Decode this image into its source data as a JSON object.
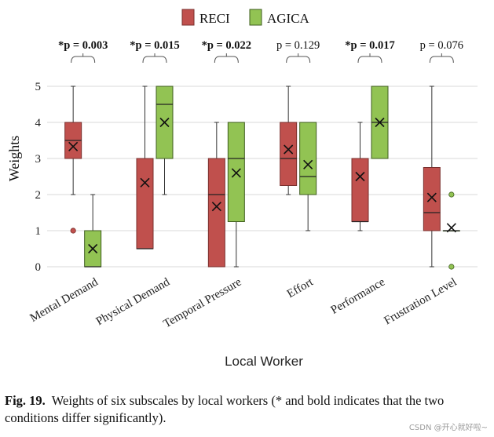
{
  "chart_data": {
    "type": "box",
    "xlabel": "Local Worker",
    "ylabel": "Weights",
    "ylim": [
      0,
      5
    ],
    "yticks": [
      "0",
      "1",
      "2",
      "3",
      "4",
      "5"
    ],
    "grid": true,
    "legend_position": "top-center",
    "categories": [
      "Mental Demand",
      "Physical Demand",
      "Temporal Pressure",
      "Effort",
      "Performance",
      "Frustration Level"
    ],
    "pvalues": [
      {
        "label": "*p = 0.003",
        "bold": true
      },
      {
        "label": "*p = 0.015",
        "bold": true
      },
      {
        "label": "*p = 0.022",
        "bold": true
      },
      {
        "label": "p = 0.129",
        "bold": false
      },
      {
        "label": "*p = 0.017",
        "bold": true
      },
      {
        "label": "p = 0.076",
        "bold": false
      }
    ],
    "series": [
      {
        "name": "RECI",
        "color": "#c0504d",
        "stroke": "#7a2f2d",
        "boxes": [
          {
            "min": 2,
            "q1": 3,
            "median": 3.5,
            "q3": 4,
            "max": 5,
            "mean": 3.33,
            "outliers": [
              1
            ]
          },
          {
            "min": 0.5,
            "q1": 0.5,
            "median": 0.5,
            "q3": 3,
            "max": 5,
            "mean": 2.33,
            "outliers": []
          },
          {
            "min": 0,
            "q1": 0,
            "median": 2,
            "q3": 3,
            "max": 4,
            "mean": 1.67,
            "outliers": []
          },
          {
            "min": 2,
            "q1": 2.25,
            "median": 3,
            "q3": 4,
            "max": 5,
            "mean": 3.25,
            "outliers": []
          },
          {
            "min": 1,
            "q1": 1.25,
            "median": 1.25,
            "q3": 3,
            "max": 4,
            "mean": 2.5,
            "outliers": []
          },
          {
            "min": 0,
            "q1": 1,
            "median": 1.5,
            "q3": 2.75,
            "max": 5,
            "mean": 1.92,
            "outliers": []
          }
        ]
      },
      {
        "name": "AGICA",
        "color": "#92c353",
        "stroke": "#3f5e1f",
        "boxes": [
          {
            "min": 0,
            "q1": 0,
            "median": 0,
            "q3": 1,
            "max": 2,
            "mean": 0.5,
            "outliers": []
          },
          {
            "min": 2,
            "q1": 3,
            "median": 4.5,
            "q3": 5,
            "max": 5,
            "mean": 4.0,
            "outliers": []
          },
          {
            "min": 0,
            "q1": 1.25,
            "median": 3,
            "q3": 4,
            "max": 4,
            "mean": 2.6,
            "outliers": []
          },
          {
            "min": 1,
            "q1": 2,
            "median": 2.5,
            "q3": 4,
            "max": 4,
            "mean": 2.83,
            "outliers": []
          },
          {
            "min": 3,
            "q1": 3,
            "median": 4,
            "q3": 5,
            "max": 5,
            "mean": 4.0,
            "outliers": []
          },
          {
            "min": 1,
            "q1": 1,
            "median": 1,
            "q3": 1,
            "max": 1,
            "mean": 1.08,
            "outliers": [
              2,
              0
            ]
          }
        ]
      }
    ]
  },
  "caption": {
    "label": "Fig. 19.",
    "text": "Weights of six subscales by local workers (* and bold indicates that the two conditions differ significantly)."
  },
  "watermark": "CSDN @开心就好啦~"
}
